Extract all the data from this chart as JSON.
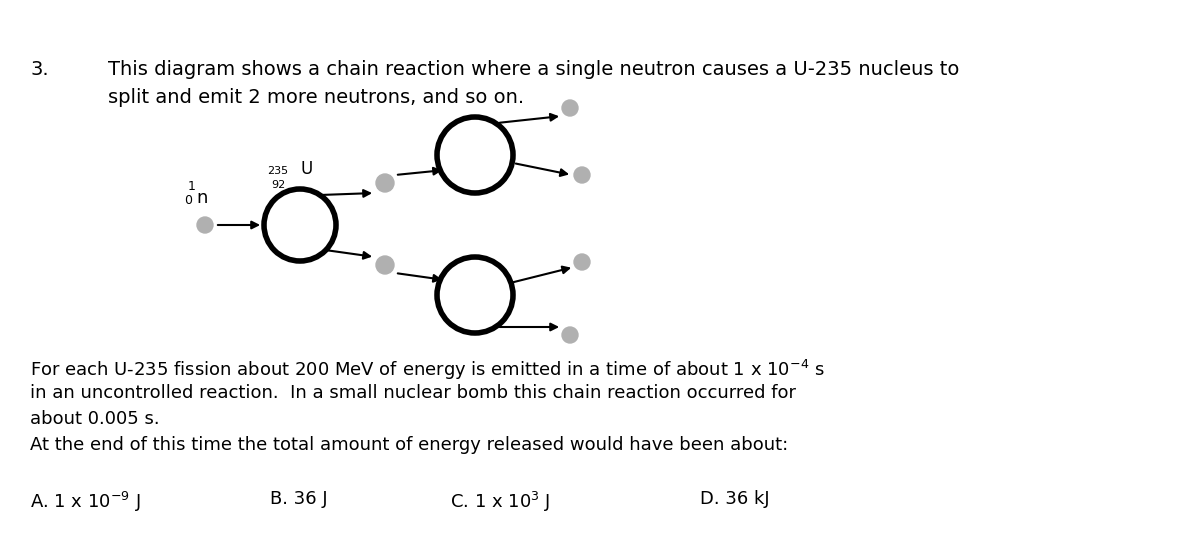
{
  "question_number": "3.",
  "question_text_line1": "This diagram shows a chain reaction where a single neutron causes a U-235 nucleus to",
  "question_text_line2": "split and emit 2 more neutrons, and so on.",
  "body_line1": "For each U-235 fission about 200 MeV of energy is emitted in a time of about 1 x 10$^{-4}$ s",
  "body_line2": "in an uncontrolled reaction.  In a small nuclear bomb this chain reaction occurred for",
  "body_line3": "about 0.005 s.",
  "body_line4": "At the end of this time the total amount of energy released would have been about:",
  "opt_A": "A. 1 x 10$^{-9}$ J",
  "opt_B": "B. 36 J",
  "opt_C": "C. 1 x 10$^{3}$ J",
  "opt_D": "D. 36 kJ",
  "background_color": "#ffffff",
  "text_color": "#000000",
  "neutron_color": "#b0b0b0",
  "nucleus_edge_color": "#000000",
  "nucleus_fill": "#ffffff",
  "arrow_color": "#000000",
  "n1_label_super": "1",
  "n1_label_sub": "0",
  "n1_label_n": "n",
  "u235_super": "235",
  "u235_letter": "U",
  "u235_sub": "92"
}
